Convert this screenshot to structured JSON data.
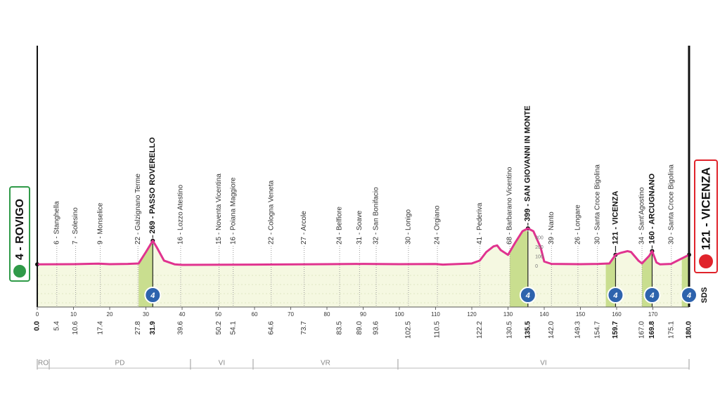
{
  "chart_data": {
    "type": "line",
    "x": [
      0,
      10,
      17,
      20,
      25,
      28,
      30,
      31.9,
      33,
      35,
      38,
      40,
      60,
      80,
      90,
      100,
      110,
      112,
      115,
      120,
      122.2,
      124,
      126,
      127,
      128,
      130,
      132,
      134,
      135.5,
      137,
      139,
      140,
      142,
      150,
      155,
      158,
      159.7,
      161,
      163,
      164,
      166,
      167,
      169,
      169.8,
      171,
      172,
      175,
      180
    ],
    "values": [
      20,
      22,
      28,
      22,
      25,
      30,
      150,
      269,
      200,
      60,
      20,
      15,
      18,
      22,
      25,
      22,
      24,
      18,
      22,
      30,
      60,
      150,
      210,
      220,
      170,
      120,
      250,
      370,
      399,
      370,
      200,
      50,
      25,
      22,
      25,
      30,
      121,
      140,
      160,
      150,
      60,
      30,
      110,
      160,
      40,
      20,
      25,
      121
    ],
    "color": "#e0338f",
    "xlim": [
      0,
      180
    ],
    "xticks": [
      0,
      10,
      20,
      30,
      40,
      50,
      60,
      70,
      80,
      90,
      100,
      110,
      120,
      130,
      140,
      150,
      160,
      170
    ],
    "yticks": [
      0,
      100,
      200,
      300
    ],
    "start": "4 - ROVIGO",
    "finish": "121 - VICENZA",
    "note": "SDS",
    "waypoints": [
      {
        "km": {
          "value": 0,
          "label": "0.0"
        },
        "bold": true
      },
      {
        "name": "6 - Stanghella",
        "km": 5.4
      },
      {
        "name": "7 - Solesino",
        "km": 10.6
      },
      {
        "name": "9 - Monselice",
        "km": 17.4
      },
      {
        "name": "22 - Galzignano Terme",
        "km": 27.8
      },
      {
        "name": "269 - PASSO ROVERELLO",
        "km": 31.9,
        "bold": true
      },
      {
        "name": "16 - Lozzo Atestino",
        "km": 39.6
      },
      {
        "name": "15 - Noventa Vicentina",
        "km": 50.2
      },
      {
        "name": "16 - Poiana Maggiore",
        "km": 54.1
      },
      {
        "name": "22 - Cologna Veneta",
        "km": 64.6
      },
      {
        "name": "27 - Arcole",
        "km": 73.7
      },
      {
        "name": "24 - Belfiore",
        "km": 83.5
      },
      {
        "name": "31 - Soave",
        "km": {
          "value": 89,
          "label": "89.0"
        }
      },
      {
        "name": "32 - San Bonifacio",
        "km": 93.6
      },
      {
        "name": "30 - Lonigo",
        "km": 102.5
      },
      {
        "name": "24 - Orgiano",
        "km": 110.5
      },
      {
        "name": "41 - Pederiva",
        "km": 122.2
      },
      {
        "name": "68 - Barbarano Vicentino",
        "km": 130.5
      },
      {
        "name": "399 - SAN GIOVANNI IN MONTE",
        "km": 135.5,
        "bold": true
      },
      {
        "name": "39 - Nanto",
        "km": {
          "value": 142,
          "label": "142.0"
        }
      },
      {
        "name": "26 - Longare",
        "km": 149.3
      },
      {
        "name": "30 - Santa Croce Bigolina",
        "km": 154.7
      },
      {
        "name": "121 - VICENZA",
        "km": 159.7,
        "bold": true
      },
      {
        "name": "34 - Sant'Agostino",
        "km": {
          "value": 167,
          "label": "167.0"
        }
      },
      {
        "name": "160 - ARCUGNANO",
        "km": 169.8,
        "bold": true
      },
      {
        "name": "30 - Santa Croce Bigolina",
        "km": 175.1
      },
      {
        "km": {
          "value": 180,
          "label": "180.0"
        },
        "bold": true
      }
    ],
    "climbs": [
      {
        "from": 28,
        "to": 31.9,
        "category": 4
      },
      {
        "from": 130.5,
        "to": 135.5,
        "category": 4
      },
      {
        "from": 157,
        "to": 159.7,
        "category": 4
      },
      {
        "from": 167,
        "to": 169.8,
        "category": 4
      },
      {
        "from": 178,
        "to": 180,
        "category": 4
      }
    ],
    "provinces": {
      "names": [
        "RO",
        "PD",
        "VI",
        "VR",
        "VI"
      ],
      "bounds": [
        0,
        3.3,
        42.3,
        59.6,
        99.6,
        180
      ]
    }
  }
}
